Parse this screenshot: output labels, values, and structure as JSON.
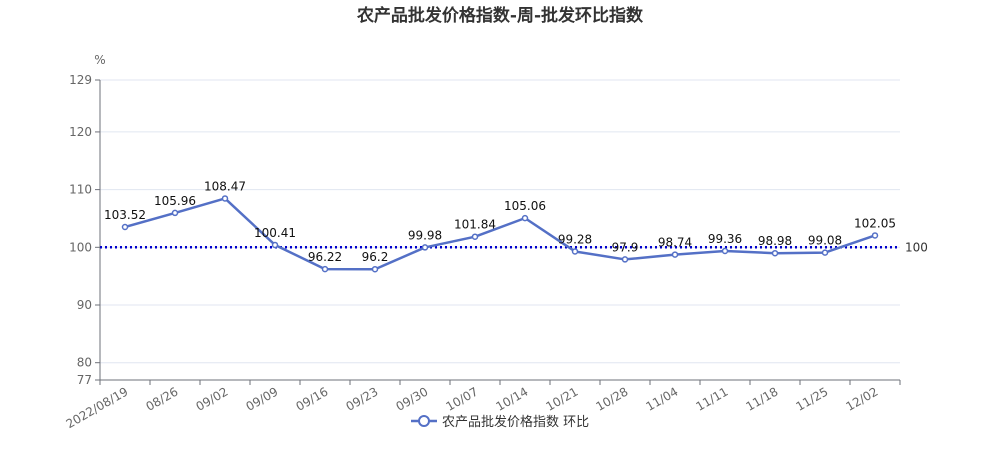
{
  "chart_data": {
    "type": "line",
    "title": "农产品批发价格指数-周-批发环比指数",
    "unit_label": "%",
    "categories": [
      "2022/08/19",
      "08/26",
      "09/02",
      "09/09",
      "09/16",
      "09/23",
      "09/30",
      "10/07",
      "10/14",
      "10/21",
      "10/28",
      "11/04",
      "11/11",
      "11/18",
      "11/25",
      "12/02"
    ],
    "series": [
      {
        "name": "农产品批发价格指数 环比",
        "color": "#5470c6",
        "values": [
          103.52,
          105.96,
          108.47,
          100.41,
          96.22,
          96.2,
          99.98,
          101.84,
          105.06,
          99.28,
          97.9,
          98.74,
          99.36,
          98.98,
          99.08,
          102.05
        ],
        "value_labels": [
          "103.52",
          "105.96",
          "108.47",
          "100.41",
          "96.22",
          "96.2",
          "99.98",
          "101.84",
          "105.06",
          "99.28",
          "97.9",
          "98.74",
          "99.36",
          "98.98",
          "99.08",
          "102.05"
        ]
      }
    ],
    "ylim": [
      77,
      129
    ],
    "yticks": [
      "77",
      "80",
      "90",
      "100",
      "110",
      "120",
      "129"
    ],
    "reference_line": {
      "value": 100,
      "label": "100",
      "color": "#0000cc",
      "style": "dotted"
    },
    "grid": true,
    "legend_position": "bottom-center"
  }
}
